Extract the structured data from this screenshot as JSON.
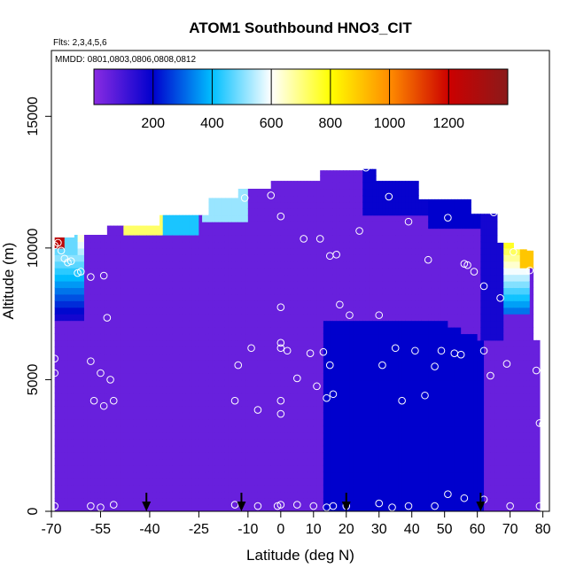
{
  "chart_data": {
    "type": "heatmap",
    "title": "ATOM1 Southbound HNO3_CIT",
    "flights_label": "Flts: 2,3,4,5,6",
    "dates_label": "MMDD: 0801,0803,0806,0808,0812",
    "xlabel": "Latitude (deg N)",
    "ylabel": "Altitude (m)",
    "xlim": [
      -70,
      82
    ],
    "ylim": [
      0,
      17500
    ],
    "x_ticks": [
      -70,
      -55,
      -40,
      -25,
      -10,
      0,
      10,
      20,
      30,
      40,
      50,
      60,
      70,
      80
    ],
    "y_ticks": [
      0,
      5000,
      10000,
      15000
    ],
    "colorbar": {
      "range": [
        0,
        1400
      ],
      "ticks": [
        200,
        400,
        600,
        800,
        1000,
        1200
      ],
      "colors": [
        "#8a2be2",
        "#0000cd",
        "#00bfff",
        "#ffffff",
        "#ffff00",
        "#ff8c00",
        "#cc0000",
        "#8b1a1a"
      ]
    },
    "arrows_lat": [
      -41,
      -12,
      20,
      61
    ],
    "points": [
      [
        -69,
        10100
      ],
      [
        -68,
        10200
      ],
      [
        -67,
        9900
      ],
      [
        -66,
        9600
      ],
      [
        -65,
        9450
      ],
      [
        -64,
        9500
      ],
      [
        -62,
        9050
      ],
      [
        -61,
        9100
      ],
      [
        -58,
        8900
      ],
      [
        -54,
        8950
      ],
      [
        -53,
        7350
      ],
      [
        -69,
        5800
      ],
      [
        -69,
        5250
      ],
      [
        -58,
        5700
      ],
      [
        -57,
        4200
      ],
      [
        -55,
        5250
      ],
      [
        -54,
        4000
      ],
      [
        -52,
        5000
      ],
      [
        -51,
        4200
      ],
      [
        -69,
        200
      ],
      [
        -58,
        200
      ],
      [
        -55,
        150
      ],
      [
        -51,
        250
      ],
      [
        -14,
        4200
      ],
      [
        -13,
        5550
      ],
      [
        -11,
        11900
      ],
      [
        -9,
        6200
      ],
      [
        -7,
        3850
      ],
      [
        -3,
        12000
      ],
      [
        0,
        4200
      ],
      [
        0,
        3700
      ],
      [
        0,
        6400
      ],
      [
        0,
        6200
      ],
      [
        0,
        7750
      ],
      [
        0,
        11200
      ],
      [
        2,
        6100
      ],
      [
        5,
        5050
      ],
      [
        7,
        10350
      ],
      [
        9,
        6000
      ],
      [
        11,
        4750
      ],
      [
        12,
        10350
      ],
      [
        13,
        6050
      ],
      [
        14,
        4300
      ],
      [
        15,
        9700
      ],
      [
        15,
        5550
      ],
      [
        16,
        4450
      ],
      [
        17,
        9750
      ],
      [
        18,
        7850
      ],
      [
        21,
        7450
      ],
      [
        24,
        10650
      ],
      [
        26,
        13050
      ],
      [
        30,
        7450
      ],
      [
        31,
        5550
      ],
      [
        33,
        11950
      ],
      [
        35,
        6200
      ],
      [
        37,
        4200
      ],
      [
        39,
        11000
      ],
      [
        41,
        6100
      ],
      [
        44,
        4400
      ],
      [
        45,
        9550
      ],
      [
        47,
        5500
      ],
      [
        49,
        6100
      ],
      [
        51,
        11150
      ],
      [
        53,
        6000
      ],
      [
        55,
        5950
      ],
      [
        56,
        9400
      ],
      [
        57,
        9350
      ],
      [
        59,
        9100
      ],
      [
        62,
        8550
      ],
      [
        62,
        6100
      ],
      [
        64,
        5150
      ],
      [
        65,
        11350
      ],
      [
        67,
        8100
      ],
      [
        69,
        5600
      ],
      [
        71,
        9850
      ],
      [
        76,
        9150
      ],
      [
        78,
        5350
      ],
      [
        79,
        3350
      ],
      [
        80,
        3300
      ],
      [
        -14,
        250
      ],
      [
        -7,
        200
      ],
      [
        -1,
        200
      ],
      [
        0,
        250
      ],
      [
        5,
        250
      ],
      [
        10,
        200
      ],
      [
        14,
        150
      ],
      [
        16,
        200
      ],
      [
        20,
        200
      ],
      [
        30,
        300
      ],
      [
        34,
        150
      ],
      [
        39,
        200
      ],
      [
        47,
        200
      ],
      [
        51,
        650
      ],
      [
        56,
        500
      ],
      [
        62,
        450
      ],
      [
        70,
        200
      ],
      [
        79,
        200
      ]
    ]
  }
}
